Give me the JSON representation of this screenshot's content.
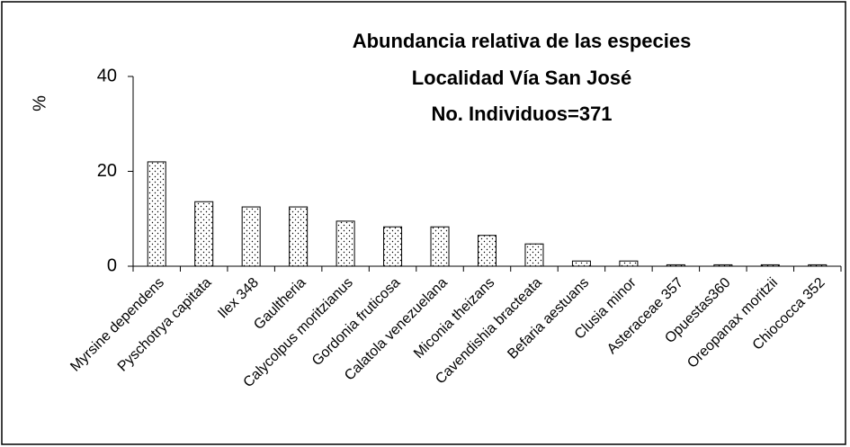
{
  "chart_data": {
    "type": "bar",
    "title": [
      "Abundancia relativa de las especies",
      "Localidad Vía San José",
      "No. Individuos=371"
    ],
    "y_label": "%",
    "categories": [
      "Myrsine dependens",
      "Pyschotrya capitata",
      "Ilex 348",
      "Gaultheria",
      "Calycolpus moritzianus",
      "Gordonia fruticosa",
      "Calatola venezuelana",
      "Miconia theizans",
      "Cavendishia bracteata",
      "Befaria aestuans",
      "Clusia minor",
      "Asteraceae 357",
      "Opuestas360",
      "Oreopanax moritzii",
      "Chiococca 352"
    ],
    "values": [
      22.0,
      13.6,
      12.5,
      12.5,
      9.5,
      8.3,
      8.3,
      6.5,
      4.7,
      1.1,
      1.1,
      0.3,
      0.3,
      0.3,
      0.3
    ],
    "color": "#000000",
    "ylim": [
      0,
      40
    ],
    "yticks": [
      0,
      20,
      40
    ],
    "grid": false
  }
}
